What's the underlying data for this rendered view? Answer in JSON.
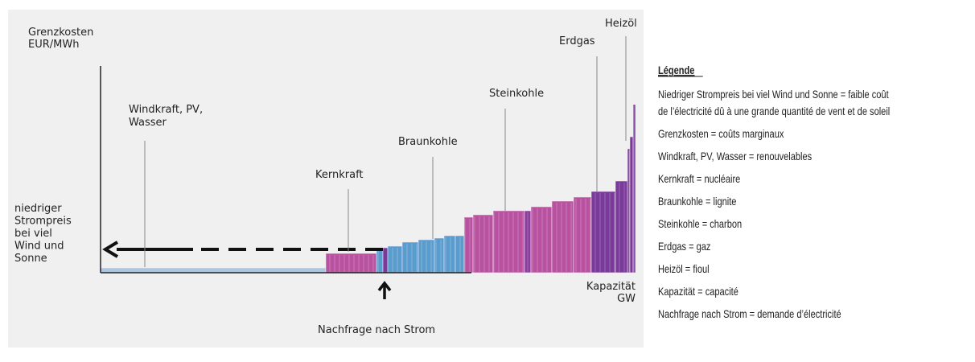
{
  "diagram": {
    "y_axis_label": [
      "Grenzkosten",
      "EUR/MWh"
    ],
    "x_axis_label": [
      "Kapazität",
      "GW"
    ],
    "low_price_note": [
      "niedriger",
      "Strompreis",
      "bei viel",
      "Wind und",
      "Sonne"
    ],
    "demand_label": "Nachfrage nach Strom",
    "sources": {
      "renewables": [
        "Windkraft, PV,",
        "Wasser"
      ],
      "nuclear": "Kernkraft",
      "lignite": "Braunkohle",
      "hard_coal": "Steinkohle",
      "gas": "Erdgas",
      "oil": "Heizöl"
    }
  },
  "legend": {
    "title": "Légende",
    "entries": [
      [
        "Niedriger Strompreis bei viel Wind und Sonne = faible coût",
        "de l’électricité dû à une grande quantité de vent et de soleil"
      ],
      [
        "Grenzkosten = coûts marginaux"
      ],
      [
        "Windkraft, PV, Wasser = renouvelables"
      ],
      [
        "Kernkraft = nucléaire"
      ],
      [
        "Braunkohle = lignite"
      ],
      [
        "Steinkohle = charbon"
      ],
      [
        "Erdgas = gaz"
      ],
      [
        "Heizöl = fioul"
      ],
      [
        "Kapazität = capacité"
      ],
      [
        "Nachfrage nach Strom = demande d’électricité"
      ]
    ]
  }
}
